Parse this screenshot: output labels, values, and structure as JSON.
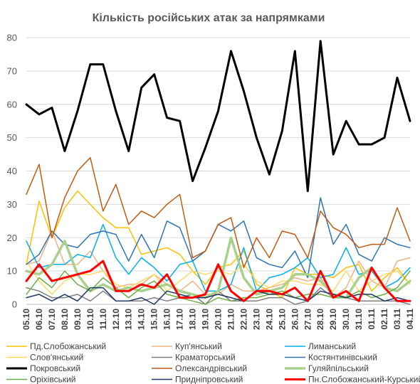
{
  "chart_data": {
    "type": "line",
    "title": "Кількість російських атак за напрямками",
    "xlabel": "",
    "ylabel": "",
    "ylim": [
      0,
      80
    ],
    "yticks": [
      0,
      10,
      20,
      30,
      40,
      50,
      60,
      70,
      80
    ],
    "grid": "horizontal",
    "legend_position": "bottom",
    "categories": [
      "05.10",
      "06.10",
      "07.10",
      "08.10",
      "09.10",
      "10.10",
      "11.10",
      "12.10",
      "13.10",
      "14.10",
      "15.10",
      "16.10",
      "17.10",
      "18.10",
      "19.10",
      "20.10",
      "21.10",
      "22.10",
      "23.10",
      "24.10",
      "25.10",
      "26.10",
      "27.10",
      "28.10",
      "29.10",
      "30.10",
      "31.10",
      "01.11",
      "02.11",
      "03.11",
      "04.11"
    ],
    "series": [
      {
        "name": "Пд.Слобожанський",
        "color": "#FFC000",
        "width": 1.5,
        "values": [
          12,
          31,
          20,
          29,
          34,
          30,
          26,
          23,
          23,
          15,
          16,
          17,
          15,
          10,
          6,
          11,
          12,
          16,
          6,
          4,
          2,
          11,
          9,
          9,
          8,
          11,
          12,
          4,
          8,
          11,
          6
        ]
      },
      {
        "name": "Куп'янський",
        "color": "#F4B183",
        "width": 1.5,
        "values": [
          12,
          13,
          22,
          12,
          12,
          16,
          10,
          5,
          6,
          6,
          9,
          6,
          4,
          7,
          3,
          3,
          6,
          4,
          4,
          5,
          6,
          8,
          7,
          8,
          2,
          5,
          13,
          7,
          5,
          13,
          14
        ]
      },
      {
        "name": "Лиманський",
        "color": "#00B0F0",
        "width": 1.5,
        "values": [
          19,
          11,
          12,
          12,
          15,
          14,
          24,
          14,
          9,
          14,
          11,
          7,
          12,
          13,
          4,
          4,
          6,
          17,
          4,
          8,
          9,
          11,
          14,
          8,
          9,
          17,
          9,
          10,
          5,
          7,
          11
        ]
      },
      {
        "name": "Слов'янський",
        "color": "#FFD966",
        "width": 1.5,
        "values": [
          13,
          7,
          3,
          7,
          9,
          9,
          10,
          6,
          5,
          7,
          9,
          4,
          7,
          10,
          9,
          10,
          9,
          12,
          7,
          5,
          7,
          7,
          6,
          6,
          4,
          10,
          4,
          7,
          9,
          10,
          6
        ]
      },
      {
        "name": "Краматорський",
        "color": "#808080",
        "width": 1.5,
        "values": [
          5,
          4,
          2,
          2,
          3,
          1,
          4,
          1,
          1,
          1,
          2,
          1,
          2,
          3,
          0,
          4,
          1,
          1,
          1,
          2,
          2,
          0,
          1,
          5,
          2,
          2,
          1,
          1,
          1,
          1,
          0
        ]
      },
      {
        "name": "Костянтинівський",
        "color": "#2E75B6",
        "width": 1.5,
        "values": [
          12,
          15,
          22,
          18,
          17,
          21,
          22,
          21,
          13,
          21,
          14,
          25,
          23,
          13,
          16,
          24,
          22,
          25,
          14,
          12,
          11,
          16,
          8,
          32,
          18,
          24,
          15,
          13,
          20,
          18,
          17
        ]
      },
      {
        "name": "Покровський",
        "color": "#000000",
        "width": 3,
        "values": [
          60,
          57,
          59,
          46,
          58,
          72,
          72,
          58,
          46,
          65,
          69,
          56,
          55,
          37,
          47,
          58,
          76,
          64,
          50,
          39,
          52,
          76,
          34,
          79,
          45,
          55,
          48,
          48,
          50,
          68,
          55
        ]
      },
      {
        "name": "Олександрівський",
        "color": "#C55A11",
        "width": 1.5,
        "values": [
          33,
          42,
          20,
          32,
          40,
          44,
          28,
          36,
          24,
          28,
          26,
          30,
          33,
          14,
          16,
          24,
          26,
          11,
          20,
          14,
          22,
          21,
          14,
          28,
          23,
          21,
          17,
          18,
          18,
          29,
          19
        ]
      },
      {
        "name": "Гуляйпільський",
        "color": "#A9D18E",
        "width": 3.5,
        "values": [
          10,
          9,
          12,
          19,
          9,
          4,
          6,
          4,
          5,
          4,
          5,
          6,
          4,
          3,
          2,
          4,
          20,
          8,
          3,
          4,
          5,
          9,
          9,
          7,
          3,
          2,
          8,
          11,
          5,
          4,
          7
        ]
      },
      {
        "name": "Оріхівський",
        "color": "#70AD47",
        "width": 1.5,
        "values": [
          3,
          8,
          5,
          10,
          6,
          4,
          8,
          5,
          2,
          5,
          7,
          3,
          2,
          1,
          0,
          2,
          1,
          2,
          2,
          3,
          4,
          2,
          3,
          3,
          2,
          2,
          4,
          2,
          3,
          5,
          10
        ]
      },
      {
        "name": "Придніпровський",
        "color": "#1F3864",
        "width": 1.5,
        "values": [
          2,
          3,
          1,
          3,
          1,
          5,
          5,
          1,
          1,
          2,
          0,
          4,
          3,
          2,
          2,
          3,
          2,
          1,
          4,
          3,
          3,
          2,
          1,
          4,
          3,
          2,
          3,
          3,
          1,
          2,
          1
        ]
      },
      {
        "name": "Пн.Слобожанський-Курський",
        "color": "#FF0000",
        "width": 3,
        "values": [
          7,
          12,
          7,
          8,
          9,
          10,
          13,
          4,
          4,
          6,
          5,
          9,
          2,
          2,
          3,
          12,
          4,
          1,
          4,
          4,
          3,
          5,
          1,
          10,
          2,
          4,
          1,
          11,
          5,
          1,
          1
        ]
      }
    ]
  }
}
